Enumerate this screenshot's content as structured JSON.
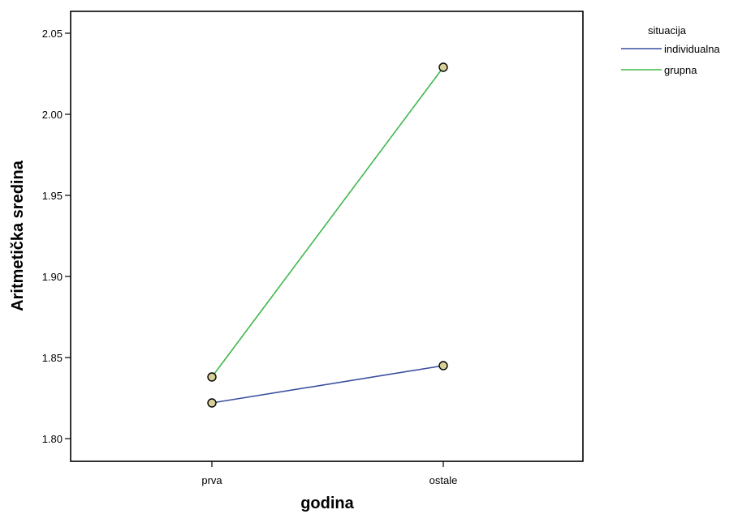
{
  "chart_data": {
    "type": "line",
    "title": "",
    "xlabel": "godina",
    "ylabel": "Aritmetička sredina",
    "categories": [
      "prva",
      "ostale"
    ],
    "ylim": [
      1.785,
      2.065
    ],
    "yticks": [
      "1.80",
      "1.85",
      "1.90",
      "1.95",
      "2.00",
      "2.05"
    ],
    "grid": false,
    "legend": {
      "title": "situacija",
      "placement": "top-right outside"
    },
    "series": [
      {
        "name": "individualna",
        "values": [
          1.822,
          1.845
        ],
        "color": "#3c4fa0"
      },
      {
        "name": "grupna",
        "values": [
          1.838,
          2.029
        ],
        "color": "#3db84a"
      }
    ],
    "marker": {
      "shape": "circle",
      "fill": "#d8cf98",
      "stroke": "#000000"
    }
  }
}
